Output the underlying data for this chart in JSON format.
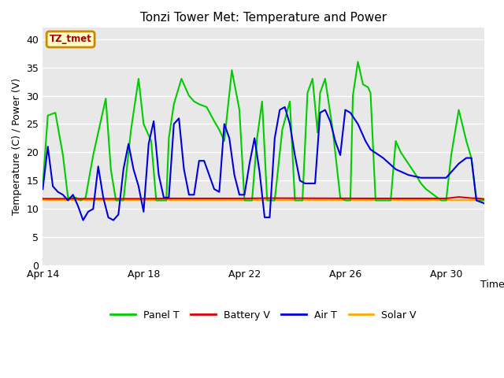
{
  "title": "Tonzi Tower Met: Temperature and Power",
  "xlabel": "Time",
  "ylabel": "Temperature (C) / Power (V)",
  "ylim": [
    0,
    42
  ],
  "yticks": [
    0,
    5,
    10,
    15,
    20,
    25,
    30,
    35,
    40
  ],
  "bg_color": "#e8e8e8",
  "fig_color": "#ffffff",
  "annotation_text": "TZ_tmet",
  "annotation_bg": "#ffffcc",
  "annotation_border": "#cc8800",
  "annotation_text_color": "#aa0000",
  "legend_entries": [
    "Panel T",
    "Battery V",
    "Air T",
    "Solar V"
  ],
  "legend_colors": [
    "#00cc00",
    "#dd0000",
    "#0000dd",
    "#ffaa00"
  ],
  "x_tick_labels": [
    "Apr 14",
    "Apr 18",
    "Apr 22",
    "Apr 26",
    "Apr 30"
  ],
  "x_tick_positions": [
    0,
    4,
    8,
    12,
    16
  ],
  "xlim": [
    0,
    17.5
  ],
  "panel_color": "#00cc00",
  "battery_color": "#dd0000",
  "air_color": "#0000dd",
  "solar_color": "#ffaa00",
  "line_width": 1.5,
  "panel_T_x": [
    0.0,
    0.2,
    0.5,
    0.8,
    1.0,
    1.3,
    1.5,
    1.7,
    1.9,
    2.0,
    2.2,
    2.5,
    2.7,
    2.9,
    3.0,
    3.2,
    3.5,
    3.8,
    4.0,
    4.2,
    4.3,
    4.5,
    4.7,
    4.9,
    5.0,
    5.2,
    5.5,
    5.8,
    6.0,
    6.2,
    6.5,
    6.8,
    7.0,
    7.2,
    7.5,
    7.8,
    8.0,
    8.2,
    8.3,
    8.5,
    8.7,
    8.9,
    9.0,
    9.2,
    9.5,
    9.8,
    10.0,
    10.2,
    10.3,
    10.5,
    10.7,
    10.9,
    11.0,
    11.2,
    11.5,
    11.8,
    12.0,
    12.2,
    12.3,
    12.5,
    12.7,
    12.9,
    13.0,
    13.2,
    13.5,
    13.8,
    14.0,
    14.2,
    14.5,
    14.8,
    15.0,
    15.2,
    15.5,
    15.8,
    16.0,
    16.2,
    16.5,
    16.8,
    17.0,
    17.2,
    17.5
  ],
  "panel_T_y": [
    14.0,
    26.5,
    27.0,
    19.5,
    12.0,
    12.0,
    11.5,
    12.0,
    17.0,
    19.5,
    23.5,
    29.5,
    17.0,
    11.5,
    11.5,
    11.5,
    24.0,
    33.0,
    25.0,
    23.0,
    22.0,
    11.5,
    11.5,
    11.5,
    22.5,
    28.5,
    33.0,
    30.0,
    29.0,
    28.5,
    28.0,
    25.5,
    24.0,
    22.0,
    34.5,
    27.5,
    11.5,
    11.5,
    11.5,
    22.5,
    29.0,
    11.5,
    11.5,
    11.5,
    24.0,
    29.0,
    11.5,
    11.5,
    11.5,
    30.5,
    33.0,
    23.5,
    30.5,
    33.0,
    24.0,
    12.0,
    11.5,
    11.5,
    30.0,
    36.0,
    32.0,
    31.5,
    30.5,
    11.5,
    11.5,
    11.5,
    22.0,
    20.0,
    18.0,
    16.0,
    14.5,
    13.5,
    12.5,
    11.5,
    11.5,
    19.5,
    27.5,
    22.0,
    19.0,
    11.5,
    11.5
  ],
  "battery_V_x": [
    0.0,
    4.0,
    5.0,
    8.0,
    9.0,
    13.0,
    16.0,
    16.5,
    17.0,
    17.3,
    17.5
  ],
  "battery_V_y": [
    11.8,
    11.8,
    11.85,
    11.85,
    11.9,
    11.85,
    11.85,
    12.1,
    11.9,
    11.85,
    11.75
  ],
  "air_T_x": [
    0.0,
    0.2,
    0.4,
    0.6,
    0.8,
    1.0,
    1.2,
    1.4,
    1.6,
    1.8,
    2.0,
    2.2,
    2.4,
    2.6,
    2.8,
    3.0,
    3.2,
    3.4,
    3.6,
    3.8,
    4.0,
    4.2,
    4.4,
    4.6,
    4.8,
    5.0,
    5.2,
    5.4,
    5.6,
    5.8,
    6.0,
    6.2,
    6.4,
    6.6,
    6.8,
    7.0,
    7.2,
    7.4,
    7.6,
    7.8,
    8.0,
    8.2,
    8.4,
    8.6,
    8.8,
    9.0,
    9.2,
    9.4,
    9.6,
    9.8,
    10.0,
    10.2,
    10.4,
    10.6,
    10.8,
    11.0,
    11.2,
    11.4,
    11.6,
    11.8,
    12.0,
    12.2,
    12.5,
    12.8,
    13.0,
    13.5,
    14.0,
    14.5,
    15.0,
    15.5,
    16.0,
    16.3,
    16.5,
    16.8,
    17.0,
    17.2,
    17.5
  ],
  "air_T_y": [
    13.5,
    21.0,
    14.0,
    13.0,
    12.5,
    11.5,
    12.5,
    10.5,
    8.0,
    9.5,
    10.0,
    17.5,
    12.0,
    8.5,
    8.0,
    9.0,
    17.0,
    21.5,
    17.0,
    14.0,
    9.5,
    21.5,
    25.5,
    16.0,
    12.0,
    12.0,
    25.0,
    26.0,
    17.0,
    12.5,
    12.5,
    18.5,
    18.5,
    16.0,
    13.5,
    13.0,
    25.0,
    22.5,
    16.0,
    12.5,
    12.5,
    18.0,
    22.5,
    16.5,
    8.5,
    8.5,
    22.5,
    27.5,
    28.0,
    25.0,
    19.5,
    15.0,
    14.5,
    14.5,
    14.5,
    27.0,
    27.5,
    25.5,
    22.0,
    19.5,
    27.5,
    27.0,
    25.0,
    22.0,
    20.5,
    19.0,
    17.0,
    16.0,
    15.5,
    15.5,
    15.5,
    17.0,
    18.0,
    19.0,
    19.0,
    11.5,
    11.0
  ],
  "solar_V_x": [
    0.0,
    8.0,
    13.0,
    16.2,
    16.5,
    17.0,
    17.3,
    17.5
  ],
  "solar_V_y": [
    11.5,
    11.5,
    11.5,
    11.5,
    11.5,
    11.5,
    11.5,
    11.5
  ]
}
